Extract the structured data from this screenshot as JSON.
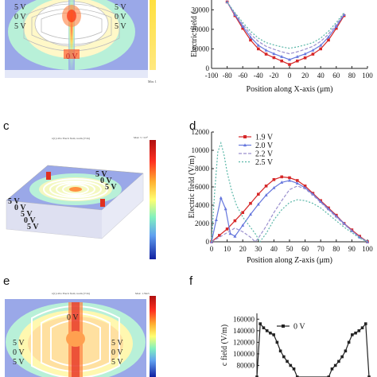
{
  "panels": {
    "c": "c",
    "d": "d",
    "e": "e",
    "f": "f"
  },
  "sim_a": {
    "labels": [
      "5 V",
      "0 V",
      "5 V",
      "5 V",
      "0 V",
      "5 V",
      "0 V"
    ],
    "colorbar_top": "",
    "colorbar_bottom": "Min: 1"
  },
  "sim_c": {
    "title": "x(1)=Ow Electr field, norm (V/m)",
    "colorbar_top": "Max: 5 ×10⁴",
    "labels": [
      "5 V",
      "0 V",
      "5 V",
      "0 V",
      "5 V",
      "5 V",
      "0 V",
      "5 V"
    ]
  },
  "sim_e": {
    "title": "x(1)=Ow Electr field, norm (V/m)",
    "colorbar_top": "Max: 1.59e5",
    "labels": [
      "0 V",
      "5 V",
      "5 V",
      "0 V",
      "0 V",
      "5 V",
      "5 V"
    ]
  },
  "chart_data": [
    {
      "id": "b",
      "type": "line",
      "xlabel": "Position along X-axis (μm)",
      "ylabel": "Electric field (",
      "xlim": [
        -100,
        100
      ],
      "ylim": [
        0,
        35000
      ],
      "xticks": [
        "-100",
        "-80",
        "-60",
        "-40",
        "-20",
        "0",
        "20",
        "40",
        "60",
        "80",
        "100"
      ],
      "yticks": [
        "0",
        "10000",
        "20000",
        "30000"
      ],
      "series": [
        {
          "color": "#d62728",
          "marker": "square",
          "x": [
            -80,
            -70,
            -60,
            -50,
            -40,
            -30,
            -20,
            -10,
            0,
            10,
            20,
            30,
            40,
            50,
            60,
            70
          ],
          "y": [
            34000,
            27000,
            20500,
            14500,
            10000,
            7300,
            5500,
            3800,
            2000,
            3800,
            5400,
            7300,
            10000,
            14500,
            20500,
            27000
          ]
        },
        {
          "color": "#6677dd",
          "marker": "triangle",
          "x": [
            -80,
            -70,
            -60,
            -50,
            -40,
            -30,
            -20,
            -10,
            0,
            10,
            20,
            30,
            40,
            50,
            60,
            70
          ],
          "y": [
            34000,
            27500,
            21500,
            16000,
            11800,
            9300,
            7500,
            6000,
            4500,
            6000,
            7400,
            9300,
            11800,
            16000,
            21500,
            27500
          ]
        },
        {
          "color": "#9a8fce",
          "marker": "none",
          "x": [
            -80,
            -70,
            -60,
            -50,
            -40,
            -30,
            -20,
            -10,
            0,
            10,
            20,
            30,
            40,
            50,
            60,
            70
          ],
          "y": [
            34000,
            28000,
            22500,
            17500,
            13800,
            11300,
            9800,
            8500,
            7500,
            8500,
            9800,
            11300,
            13800,
            17500,
            22500,
            28000
          ]
        },
        {
          "color": "#5ab7a8",
          "marker": "none",
          "x": [
            -80,
            -70,
            -60,
            -50,
            -40,
            -30,
            -20,
            -10,
            0,
            10,
            20,
            30,
            40,
            50,
            60,
            70
          ],
          "y": [
            34000,
            28500,
            23500,
            19000,
            15500,
            13200,
            12000,
            11000,
            10300,
            11000,
            12000,
            13200,
            15500,
            19000,
            23500,
            28500
          ]
        }
      ]
    },
    {
      "id": "d",
      "type": "line",
      "xlabel": "Position along Z-axis (μm)",
      "ylabel": "Electric field (V/m)",
      "xlim": [
        0,
        100
      ],
      "ylim": [
        0,
        12000
      ],
      "xticks": [
        "0",
        "10",
        "20",
        "30",
        "40",
        "50",
        "60",
        "70",
        "80",
        "90",
        "100"
      ],
      "yticks": [
        "0",
        "2000",
        "4000",
        "6000",
        "8000",
        "10000",
        "12000"
      ],
      "legend_position": "top-left",
      "series": [
        {
          "name": "1.9 V",
          "color": "#d62728",
          "marker": "square",
          "x": [
            0,
            5,
            10,
            15,
            20,
            25,
            30,
            35,
            40,
            45,
            50,
            55,
            60,
            65,
            70,
            75,
            80,
            85,
            90,
            95,
            100
          ],
          "y": [
            0,
            700,
            1400,
            2300,
            3200,
            4200,
            5200,
            6100,
            6800,
            7100,
            7000,
            6700,
            6100,
            5300,
            4500,
            3700,
            2900,
            2000,
            1300,
            600,
            0
          ]
        },
        {
          "name": "2.0 V",
          "color": "#6677dd",
          "marker": "triangle",
          "x": [
            0,
            3,
            6,
            9,
            12,
            15,
            20,
            25,
            30,
            35,
            40,
            45,
            50,
            55,
            60,
            65,
            70,
            75,
            80,
            85,
            90,
            95,
            100
          ],
          "y": [
            0,
            2400,
            4800,
            3600,
            900,
            600,
            1800,
            3000,
            4100,
            5100,
            5900,
            6500,
            6700,
            6400,
            5900,
            5200,
            4400,
            3600,
            2800,
            2000,
            1200,
            500,
            0
          ]
        },
        {
          "name": "2.2 V",
          "color": "#9a8fce",
          "marker": "none",
          "x": [
            0,
            5,
            10,
            15,
            20,
            25,
            28,
            30,
            35,
            40,
            45,
            50,
            55,
            60,
            65,
            70,
            75,
            80,
            85,
            90,
            95,
            100
          ],
          "y": [
            0,
            500,
            1000,
            1500,
            1100,
            500,
            0,
            400,
            1700,
            3200,
            4500,
            5700,
            6100,
            5800,
            5100,
            4300,
            3500,
            2700,
            1900,
            1200,
            500,
            0
          ]
        },
        {
          "name": "2.5 V",
          "color": "#5ab7a8",
          "marker": "none",
          "x": [
            0,
            2,
            4,
            6,
            8,
            10,
            13,
            16,
            20,
            24,
            28,
            31,
            35,
            40,
            45,
            50,
            55,
            60,
            65,
            70,
            75,
            80,
            85,
            90,
            95,
            100
          ],
          "y": [
            0,
            5500,
            9800,
            10800,
            9500,
            7600,
            5500,
            4000,
            2700,
            1800,
            900,
            0,
            900,
            2400,
            3500,
            4300,
            4600,
            4500,
            4200,
            3700,
            3000,
            2300,
            1600,
            1000,
            400,
            0
          ]
        }
      ]
    },
    {
      "id": "f",
      "type": "line",
      "xlabel": "",
      "ylabel": "c field (V/m)",
      "xlim": [
        0,
        100
      ],
      "ylim": [
        60000,
        170000
      ],
      "yticks": [
        "80000",
        "100000",
        "120000",
        "140000",
        "160000"
      ],
      "legend_position": "top-left",
      "series": [
        {
          "name": "0 V",
          "color": "#222222",
          "marker": "square",
          "x": [
            0,
            3,
            6,
            9,
            12,
            15,
            18,
            21,
            24,
            27,
            30,
            33,
            36,
            64,
            67,
            70,
            73,
            76,
            79,
            82,
            85,
            88,
            91,
            94,
            97,
            100
          ],
          "y": [
            60000,
            152000,
            145000,
            140000,
            136000,
            133000,
            120000,
            105000,
            95000,
            87000,
            80000,
            74000,
            60000,
            60000,
            74000,
            80000,
            87000,
            95000,
            105000,
            120000,
            133000,
            136000,
            140000,
            145000,
            152000,
            60000
          ]
        }
      ]
    }
  ]
}
